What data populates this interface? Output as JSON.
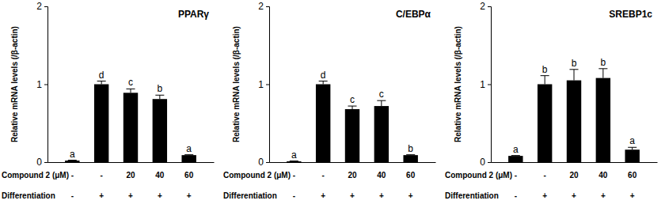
{
  "chart_data": [
    {
      "type": "bar",
      "title": "PPARγ",
      "y_label": "Relative mRNA levels (/β-actin)",
      "categories": [
        null,
        null,
        null,
        null,
        null
      ],
      "values": [
        0.02,
        1.0,
        0.89,
        0.81,
        0.09
      ],
      "errors": [
        0.005,
        0.04,
        0.05,
        0.05,
        0.005
      ],
      "significance": [
        "a",
        "d",
        "c",
        "b",
        "a"
      ],
      "x_rows": [
        {
          "label": "Compound 2 (μM)",
          "values": [
            "-",
            "-",
            "20",
            "40",
            "60"
          ]
        },
        {
          "label": "Differentiation",
          "values": [
            "-",
            "+",
            "+",
            "+",
            "+"
          ]
        }
      ],
      "color": "#000000",
      "ylim": [
        0,
        2
      ],
      "yticks": [
        0,
        1,
        2
      ],
      "grid": false
    },
    {
      "type": "bar",
      "title": "C/EBPα",
      "y_label": "Relative mRNA levels (/β-actin)",
      "categories": [
        null,
        null,
        null,
        null,
        null
      ],
      "values": [
        0.01,
        1.0,
        0.68,
        0.72,
        0.09
      ],
      "errors": [
        0.005,
        0.04,
        0.04,
        0.07,
        0.005
      ],
      "significance": [
        "a",
        "d",
        "c",
        "c",
        "b"
      ],
      "x_rows": [
        {
          "label": "Compound 2 (μM)",
          "values": [
            "-",
            "-",
            "20",
            "40",
            "60"
          ]
        },
        {
          "label": "Differentiation",
          "values": [
            "-",
            "+",
            "+",
            "+",
            "+"
          ]
        }
      ],
      "color": "#000000",
      "ylim": [
        0,
        2
      ],
      "yticks": [
        0,
        1,
        2
      ],
      "grid": false
    },
    {
      "type": "bar",
      "title": "SREBP1c",
      "y_label": "Relative mRNA levels (/β-actin)",
      "categories": [
        null,
        null,
        null,
        null,
        null
      ],
      "values": [
        0.08,
        1.0,
        1.05,
        1.08,
        0.16
      ],
      "errors": [
        0.005,
        0.11,
        0.14,
        0.12,
        0.03
      ],
      "significance": [
        "a",
        "b",
        "b",
        "b",
        "a"
      ],
      "x_rows": [
        {
          "label": "Compound 2 (μM)",
          "values": [
            "-",
            "-",
            "20",
            "40",
            "60"
          ]
        },
        {
          "label": "Differentiation",
          "values": [
            "-",
            "+",
            "+",
            "+",
            "+"
          ]
        }
      ],
      "color": "#000000",
      "ylim": [
        0,
        2
      ],
      "yticks": [
        0,
        1,
        2
      ],
      "grid": false
    }
  ]
}
